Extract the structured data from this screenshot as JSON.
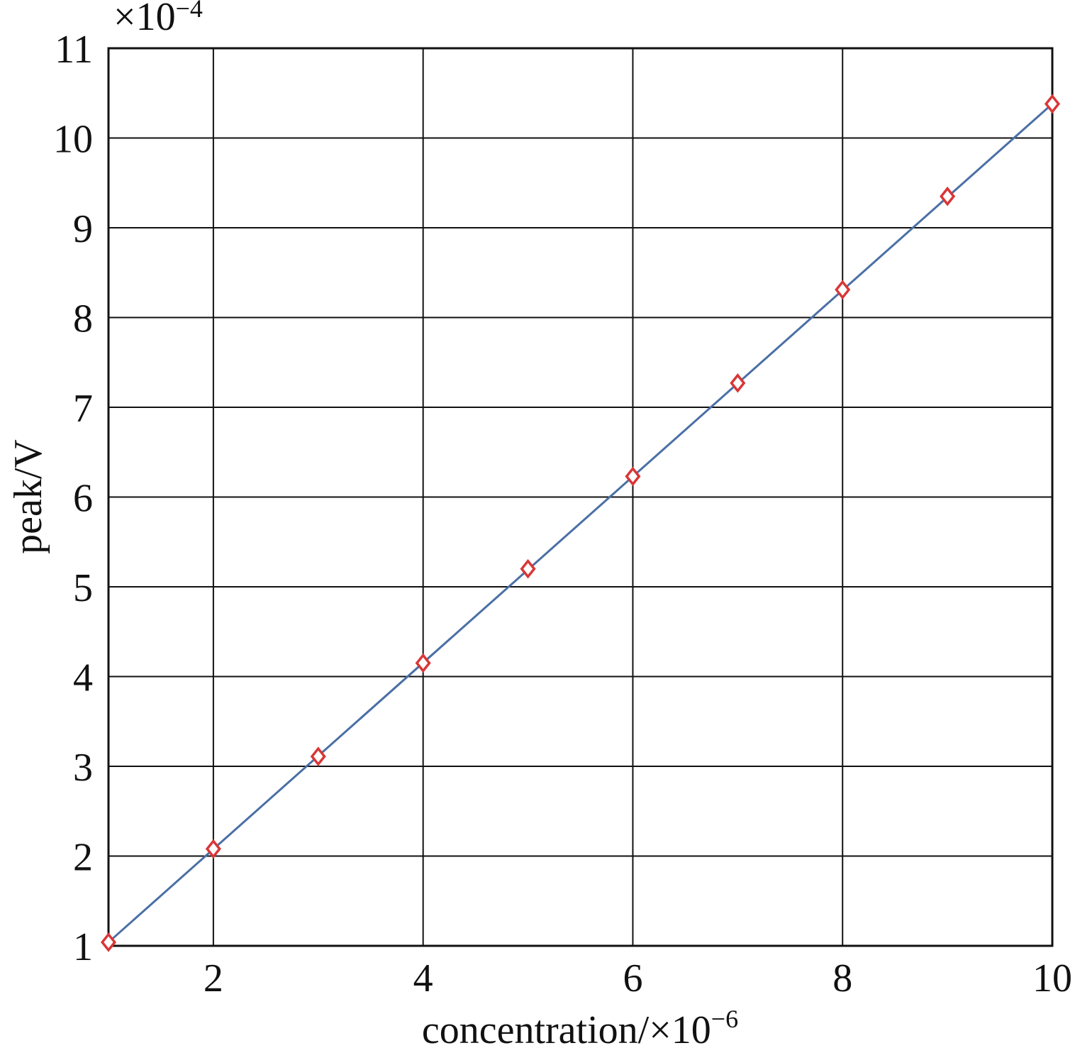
{
  "chart_data": {
    "type": "scatter",
    "xlabel": "concentration/×10",
    "xlabel_exponent": "−6",
    "ylabel": "peak/V",
    "y_scale_base": "×10",
    "y_scale_exponent": "−4",
    "x": [
      1,
      2,
      3,
      4,
      5,
      6,
      7,
      8,
      9,
      10
    ],
    "series": [
      {
        "color": "#d93636",
        "marker": "diamond",
        "values": [
          1.04,
          2.08,
          3.11,
          4.15,
          5.2,
          6.23,
          7.27,
          8.31,
          9.35,
          10.38
        ]
      },
      {
        "color": "#4a6fa5",
        "style": "line",
        "x": [
          1,
          10
        ],
        "values": [
          1.04,
          10.38
        ]
      }
    ],
    "xlim": [
      1,
      10
    ],
    "ylim": [
      1,
      11
    ],
    "xticks": [
      2,
      4,
      6,
      8,
      10
    ],
    "yticks": [
      1,
      2,
      3,
      4,
      5,
      6,
      7,
      8,
      9,
      10,
      11
    ],
    "grid": true
  }
}
